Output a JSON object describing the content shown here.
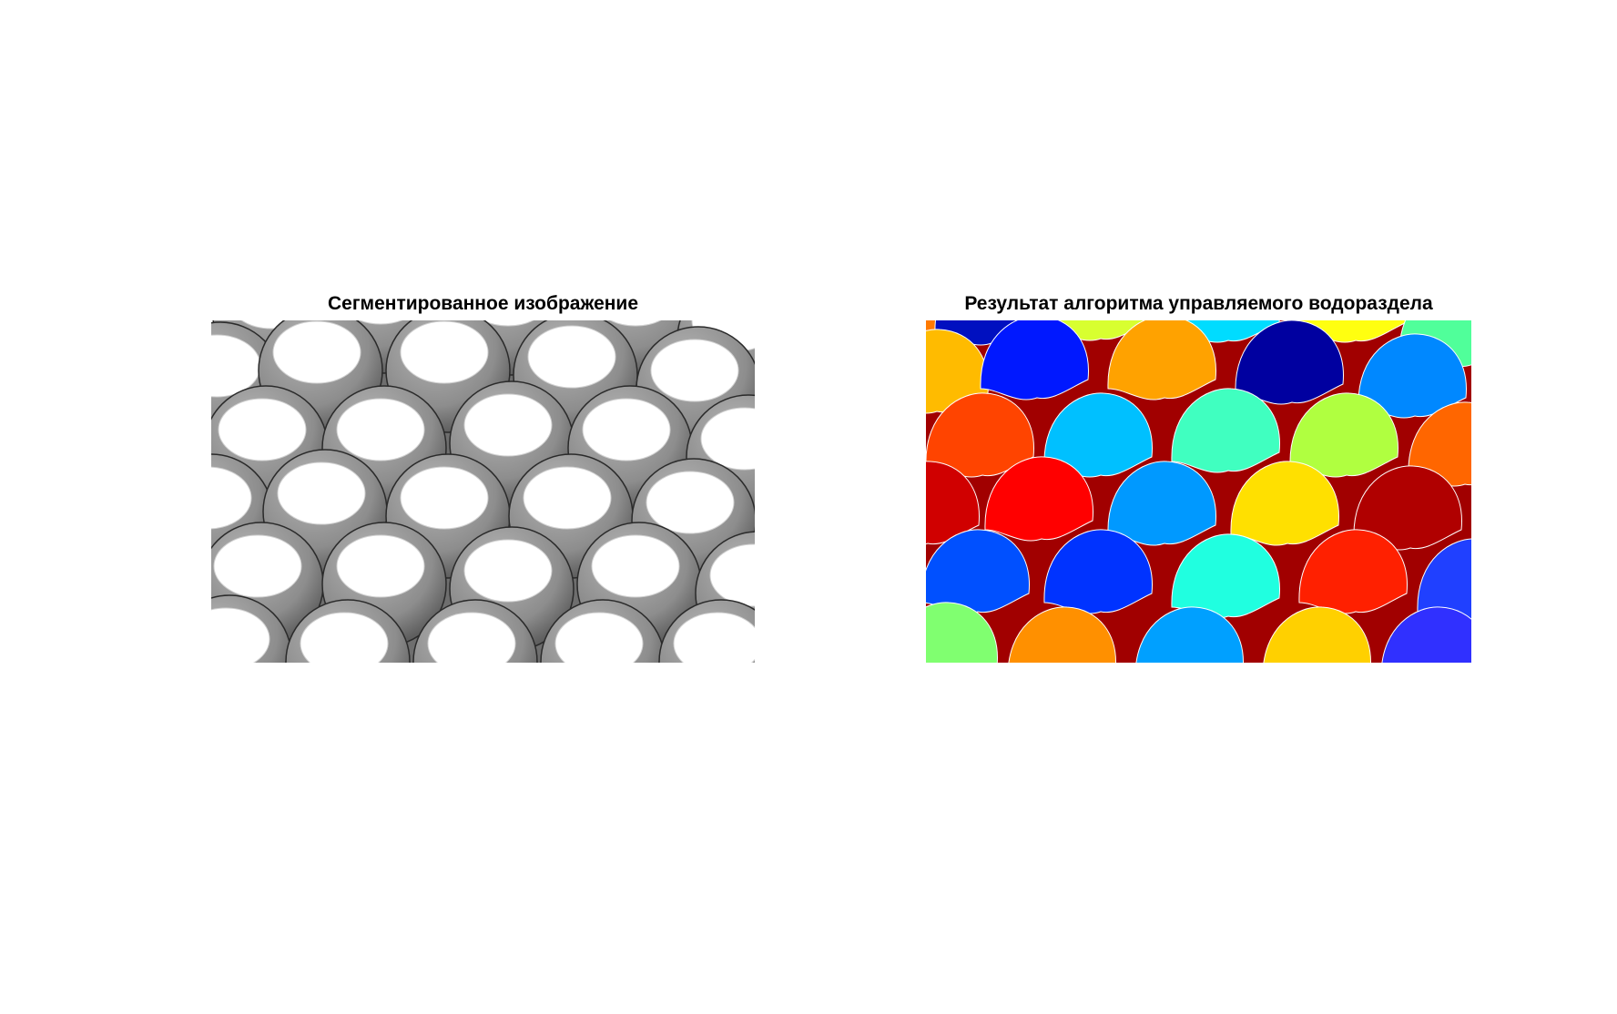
{
  "figure": {
    "left_title": "Сегментированное изображение",
    "right_title": "Результат алгоритма управляемого водораздела"
  },
  "colors": {
    "background_region": "#a10000",
    "sphere_gray": "#8a8a8a",
    "highlight": "#ffffff"
  },
  "left_image": {
    "description_icon": "grayscale-spheres-image"
  },
  "right_image": {
    "description_icon": "watershed-label-map"
  }
}
